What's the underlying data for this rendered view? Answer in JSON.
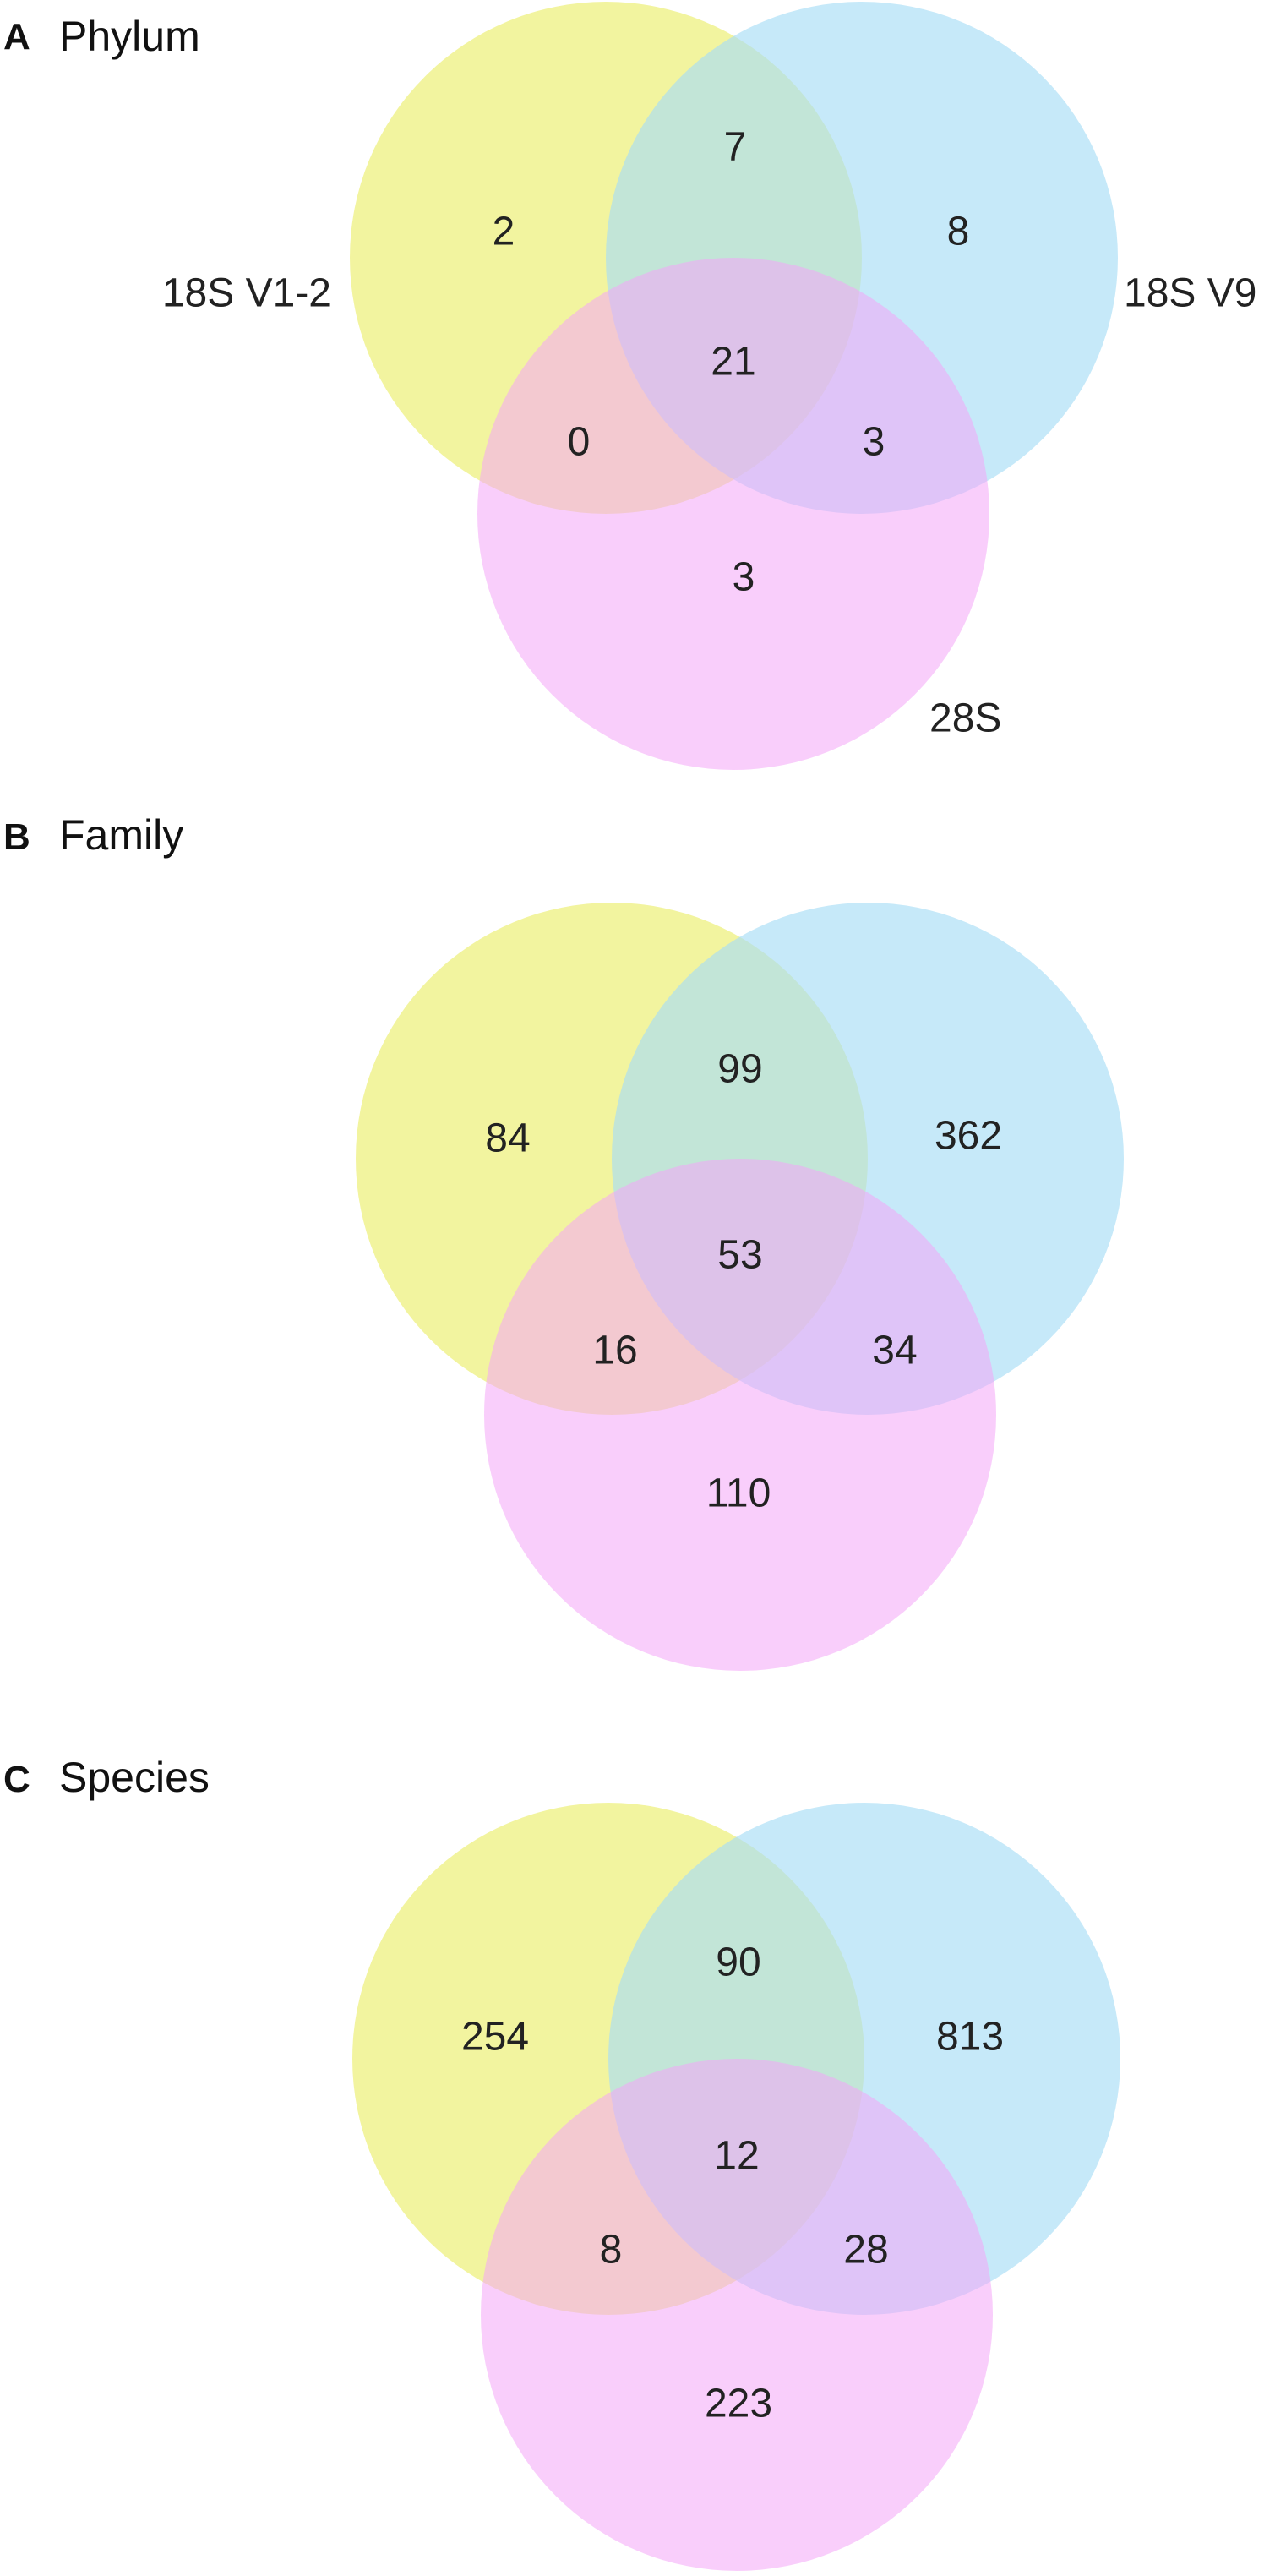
{
  "sets": [
    {
      "name": "18S V1-2",
      "color": "#EEF07F"
    },
    {
      "name": "18S V9",
      "color": "#A7DDF6"
    },
    {
      "name": "28S",
      "color": "#F4A5F7"
    }
  ],
  "panels": [
    {
      "letter": "A",
      "title": "Phylum",
      "show_set_labels": true,
      "counts": {
        "only_v12": "2",
        "v12_v9": "7",
        "only_v9": "8",
        "all": "21",
        "v12_28s": "0",
        "v9_28s": "3",
        "only_28s": "3"
      }
    },
    {
      "letter": "B",
      "title": "Family",
      "show_set_labels": false,
      "counts": {
        "only_v12": "84",
        "v12_v9": "99",
        "only_v9": "362",
        "all": "53",
        "v12_28s": "16",
        "v9_28s": "34",
        "only_28s": "110"
      }
    },
    {
      "letter": "C",
      "title": "Species",
      "show_set_labels": false,
      "counts": {
        "only_v12": "254",
        "v12_v9": "90",
        "only_v9": "813",
        "all": "12",
        "v12_28s": "8",
        "v9_28s": "28",
        "only_28s": "223"
      }
    }
  ]
}
